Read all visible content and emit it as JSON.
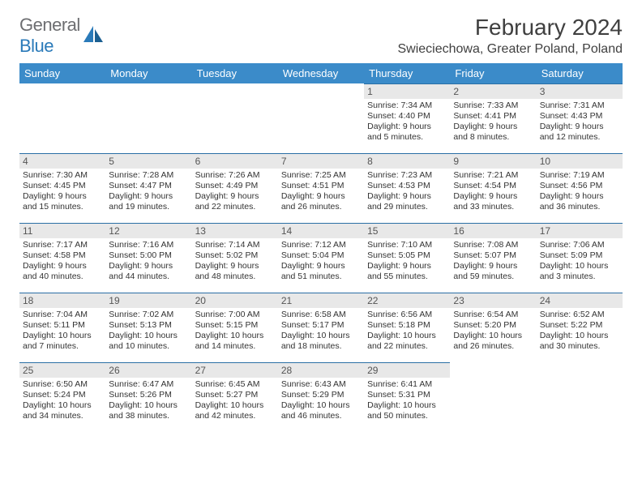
{
  "brand": {
    "part1": "General",
    "part2": "Blue"
  },
  "title": "February 2024",
  "location": "Swieciechowa, Greater Poland, Poland",
  "colors": {
    "header_bg": "#3b8bc9",
    "header_text": "#ffffff",
    "daynum_bg": "#e8e8e8",
    "daynum_border": "#2a6fa5",
    "brand_gray": "#6d6e71",
    "brand_blue": "#2a7ab9",
    "page_bg": "#ffffff"
  },
  "weekdays": [
    "Sunday",
    "Monday",
    "Tuesday",
    "Wednesday",
    "Thursday",
    "Friday",
    "Saturday"
  ],
  "first_weekday_index": 4,
  "days": [
    {
      "n": 1,
      "sunrise": "7:34 AM",
      "sunset": "4:40 PM",
      "daylight": "9 hours and 5 minutes."
    },
    {
      "n": 2,
      "sunrise": "7:33 AM",
      "sunset": "4:41 PM",
      "daylight": "9 hours and 8 minutes."
    },
    {
      "n": 3,
      "sunrise": "7:31 AM",
      "sunset": "4:43 PM",
      "daylight": "9 hours and 12 minutes."
    },
    {
      "n": 4,
      "sunrise": "7:30 AM",
      "sunset": "4:45 PM",
      "daylight": "9 hours and 15 minutes."
    },
    {
      "n": 5,
      "sunrise": "7:28 AM",
      "sunset": "4:47 PM",
      "daylight": "9 hours and 19 minutes."
    },
    {
      "n": 6,
      "sunrise": "7:26 AM",
      "sunset": "4:49 PM",
      "daylight": "9 hours and 22 minutes."
    },
    {
      "n": 7,
      "sunrise": "7:25 AM",
      "sunset": "4:51 PM",
      "daylight": "9 hours and 26 minutes."
    },
    {
      "n": 8,
      "sunrise": "7:23 AM",
      "sunset": "4:53 PM",
      "daylight": "9 hours and 29 minutes."
    },
    {
      "n": 9,
      "sunrise": "7:21 AM",
      "sunset": "4:54 PM",
      "daylight": "9 hours and 33 minutes."
    },
    {
      "n": 10,
      "sunrise": "7:19 AM",
      "sunset": "4:56 PM",
      "daylight": "9 hours and 36 minutes."
    },
    {
      "n": 11,
      "sunrise": "7:17 AM",
      "sunset": "4:58 PM",
      "daylight": "9 hours and 40 minutes."
    },
    {
      "n": 12,
      "sunrise": "7:16 AM",
      "sunset": "5:00 PM",
      "daylight": "9 hours and 44 minutes."
    },
    {
      "n": 13,
      "sunrise": "7:14 AM",
      "sunset": "5:02 PM",
      "daylight": "9 hours and 48 minutes."
    },
    {
      "n": 14,
      "sunrise": "7:12 AM",
      "sunset": "5:04 PM",
      "daylight": "9 hours and 51 minutes."
    },
    {
      "n": 15,
      "sunrise": "7:10 AM",
      "sunset": "5:05 PM",
      "daylight": "9 hours and 55 minutes."
    },
    {
      "n": 16,
      "sunrise": "7:08 AM",
      "sunset": "5:07 PM",
      "daylight": "9 hours and 59 minutes."
    },
    {
      "n": 17,
      "sunrise": "7:06 AM",
      "sunset": "5:09 PM",
      "daylight": "10 hours and 3 minutes."
    },
    {
      "n": 18,
      "sunrise": "7:04 AM",
      "sunset": "5:11 PM",
      "daylight": "10 hours and 7 minutes."
    },
    {
      "n": 19,
      "sunrise": "7:02 AM",
      "sunset": "5:13 PM",
      "daylight": "10 hours and 10 minutes."
    },
    {
      "n": 20,
      "sunrise": "7:00 AM",
      "sunset": "5:15 PM",
      "daylight": "10 hours and 14 minutes."
    },
    {
      "n": 21,
      "sunrise": "6:58 AM",
      "sunset": "5:17 PM",
      "daylight": "10 hours and 18 minutes."
    },
    {
      "n": 22,
      "sunrise": "6:56 AM",
      "sunset": "5:18 PM",
      "daylight": "10 hours and 22 minutes."
    },
    {
      "n": 23,
      "sunrise": "6:54 AM",
      "sunset": "5:20 PM",
      "daylight": "10 hours and 26 minutes."
    },
    {
      "n": 24,
      "sunrise": "6:52 AM",
      "sunset": "5:22 PM",
      "daylight": "10 hours and 30 minutes."
    },
    {
      "n": 25,
      "sunrise": "6:50 AM",
      "sunset": "5:24 PM",
      "daylight": "10 hours and 34 minutes."
    },
    {
      "n": 26,
      "sunrise": "6:47 AM",
      "sunset": "5:26 PM",
      "daylight": "10 hours and 38 minutes."
    },
    {
      "n": 27,
      "sunrise": "6:45 AM",
      "sunset": "5:27 PM",
      "daylight": "10 hours and 42 minutes."
    },
    {
      "n": 28,
      "sunrise": "6:43 AM",
      "sunset": "5:29 PM",
      "daylight": "10 hours and 46 minutes."
    },
    {
      "n": 29,
      "sunrise": "6:41 AM",
      "sunset": "5:31 PM",
      "daylight": "10 hours and 50 minutes."
    }
  ],
  "labels": {
    "sunrise": "Sunrise:",
    "sunset": "Sunset:",
    "daylight": "Daylight:"
  }
}
